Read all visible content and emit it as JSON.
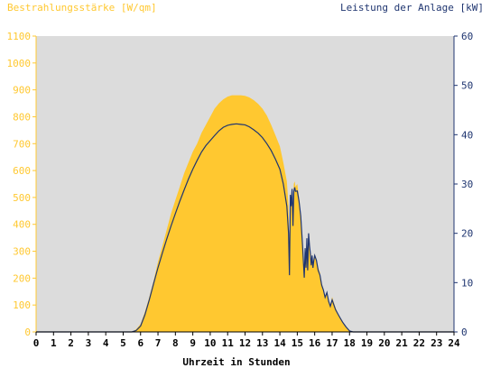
{
  "chart_data": {
    "type": "area",
    "title_left": "Bestrahlungsstärke [W/qm]",
    "title_right": "Leistung der Anlage [kW]",
    "xlabel": "Uhrzeit in Stunden",
    "x_ticks": [
      "0",
      "1",
      "2",
      "3",
      "4",
      "5",
      "6",
      "7",
      "8",
      "9",
      "10",
      "11",
      "12",
      "13",
      "14",
      "15",
      "16",
      "17",
      "18",
      "19",
      "20",
      "21",
      "22",
      "23",
      "24"
    ],
    "xlim": [
      0,
      24
    ],
    "y_left": {
      "ylim": [
        0,
        1100
      ],
      "ticks": [
        "0",
        "100",
        "200",
        "300",
        "400",
        "500",
        "600",
        "700",
        "800",
        "900",
        "1000",
        "1100"
      ],
      "color": "#FFC830"
    },
    "y_right": {
      "ylim": [
        0,
        60
      ],
      "ticks": [
        "0",
        "10",
        "20",
        "30",
        "40",
        "50",
        "60"
      ],
      "color": "#1F3570"
    },
    "plot_background": "#DCDCDC",
    "series": [
      {
        "kind": "area",
        "axis": "left",
        "color": "#FFC830",
        "x": [
          0,
          5.5,
          5.75,
          6.0,
          6.25,
          6.5,
          6.75,
          7.0,
          7.25,
          7.5,
          7.75,
          8.0,
          8.25,
          8.5,
          8.75,
          9.0,
          9.25,
          9.5,
          9.75,
          10.0,
          10.25,
          10.5,
          10.75,
          11.0,
          11.25,
          11.5,
          11.75,
          12.0,
          12.25,
          12.5,
          12.75,
          13.0,
          13.25,
          13.5,
          13.75,
          14.0,
          14.2,
          14.4,
          14.5,
          14.55,
          14.6,
          14.65,
          14.7,
          14.75,
          14.8,
          14.85,
          14.9,
          15.0,
          15.1,
          15.2,
          15.3,
          15.4,
          15.45,
          15.5,
          15.55,
          15.6,
          15.65,
          15.7,
          15.75,
          15.8,
          15.85,
          15.9,
          15.95,
          16.0,
          16.1,
          16.2,
          16.3,
          16.4,
          16.5,
          16.6,
          16.7,
          16.8,
          16.9,
          17.0,
          17.2,
          17.4,
          17.6,
          17.8,
          18.0,
          18.2,
          18.5,
          24
        ],
        "y": [
          0,
          0,
          10,
          30,
          75,
          130,
          190,
          260,
          320,
          380,
          440,
          490,
          540,
          590,
          630,
          670,
          700,
          740,
          770,
          800,
          830,
          850,
          865,
          875,
          880,
          880,
          880,
          878,
          872,
          862,
          848,
          830,
          805,
          770,
          730,
          690,
          630,
          560,
          470,
          250,
          520,
          490,
          540,
          420,
          550,
          560,
          540,
          550,
          500,
          440,
          300,
          210,
          310,
          250,
          350,
          240,
          360,
          330,
          300,
          250,
          290,
          240,
          270,
          290,
          270,
          240,
          220,
          180,
          160,
          130,
          150,
          120,
          100,
          130,
          90,
          60,
          40,
          20,
          5,
          0,
          0,
          0
        ]
      },
      {
        "kind": "line",
        "axis": "right",
        "color": "#1F3570",
        "x": [
          0,
          5.5,
          5.75,
          6.0,
          6.25,
          6.5,
          6.75,
          7.0,
          7.25,
          7.5,
          7.75,
          8.0,
          8.25,
          8.5,
          8.75,
          9.0,
          9.25,
          9.5,
          9.75,
          10.0,
          10.25,
          10.5,
          10.75,
          11.0,
          11.25,
          11.5,
          11.75,
          12.0,
          12.25,
          12.5,
          12.75,
          13.0,
          13.25,
          13.5,
          13.75,
          14.0,
          14.2,
          14.4,
          14.5,
          14.55,
          14.6,
          14.65,
          14.7,
          14.75,
          14.8,
          14.85,
          14.9,
          15.0,
          15.1,
          15.2,
          15.3,
          15.4,
          15.45,
          15.5,
          15.55,
          15.6,
          15.65,
          15.7,
          15.75,
          15.8,
          15.85,
          15.9,
          15.95,
          16.0,
          16.1,
          16.2,
          16.3,
          16.4,
          16.5,
          16.6,
          16.7,
          16.8,
          16.9,
          17.0,
          17.2,
          17.4,
          17.6,
          17.8,
          18.0,
          18.2,
          18.5,
          24
        ],
        "y": [
          0,
          0,
          0.3,
          1.2,
          3.5,
          6.5,
          9.8,
          13.0,
          16.0,
          18.8,
          21.5,
          24.0,
          26.5,
          28.8,
          31.0,
          33.0,
          34.8,
          36.5,
          37.8,
          38.8,
          39.8,
          40.8,
          41.5,
          41.9,
          42.1,
          42.2,
          42.1,
          42.0,
          41.6,
          41.0,
          40.3,
          39.4,
          38.2,
          36.8,
          35.0,
          33.0,
          30.0,
          25.5,
          20.0,
          11.5,
          27.8,
          25.5,
          29.0,
          21.5,
          28.5,
          29.3,
          28.5,
          28.6,
          26.5,
          23.5,
          17.5,
          11.0,
          17.0,
          13.0,
          19.0,
          12.5,
          20.0,
          17.5,
          16.0,
          13.5,
          15.5,
          13.0,
          14.5,
          15.5,
          14.5,
          12.5,
          11.5,
          9.5,
          8.5,
          7.0,
          8.0,
          6.2,
          5.2,
          6.5,
          4.5,
          3.2,
          2.0,
          1.0,
          0.2,
          0,
          0,
          0
        ]
      }
    ],
    "grid": false,
    "legend": "none"
  }
}
